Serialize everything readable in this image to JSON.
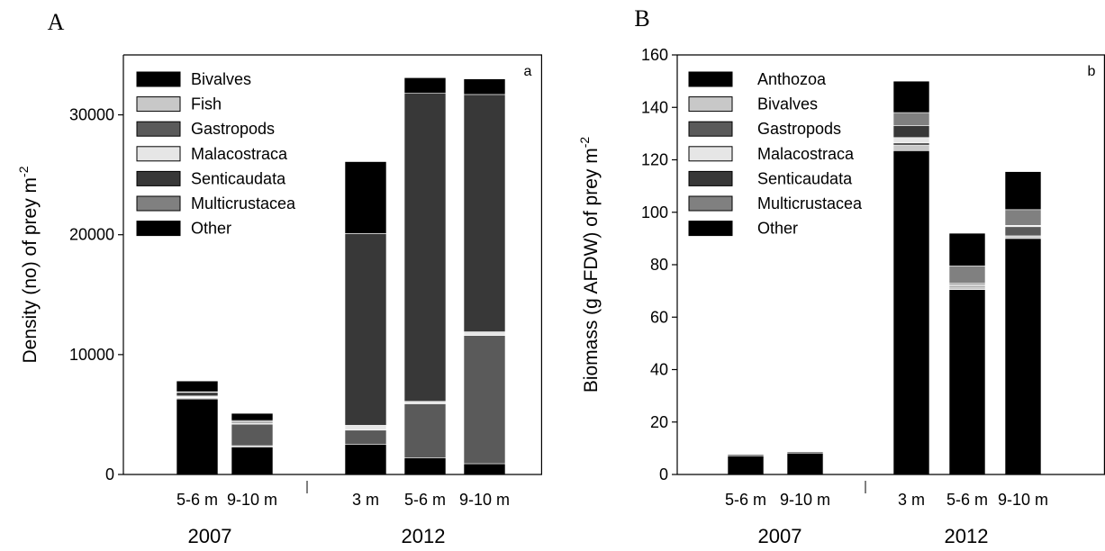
{
  "chart_data": [
    {
      "type": "bar",
      "stacked": true,
      "panel_label": "A",
      "corner_label": "a",
      "ylabel": "Density (no) of prey m",
      "ylabel_sup": "-2",
      "ylim": [
        0,
        35000
      ],
      "yticks": [
        0,
        10000,
        20000,
        30000
      ],
      "grid": false,
      "legend_position": "top-left",
      "categories": [
        "5-6 m",
        "9-10 m",
        "3 m",
        "5-6 m",
        "9-10 m"
      ],
      "category_groups": [
        1,
        1,
        2,
        2,
        2
      ],
      "groups": [
        "2007",
        "2012"
      ],
      "series": [
        {
          "name": "Bivalves",
          "color": "#000000",
          "values": [
            6300,
            2300,
            2500,
            1400,
            900
          ]
        },
        {
          "name": "Fish",
          "color": "#c8c8c8",
          "values": [
            100,
            100,
            0,
            0,
            0
          ]
        },
        {
          "name": "Gastropods",
          "color": "#5a5a5a",
          "values": [
            50,
            1800,
            1200,
            4500,
            10700
          ]
        },
        {
          "name": "Malacostraca",
          "color": "#e6e6e6",
          "values": [
            100,
            100,
            400,
            200,
            300
          ]
        },
        {
          "name": "Senticaudata",
          "color": "#383838",
          "values": [
            300,
            100,
            16000,
            25700,
            19800
          ]
        },
        {
          "name": "Multicrustacea",
          "color": "#808080",
          "values": [
            50,
            100,
            0,
            0,
            0
          ]
        },
        {
          "name": "Other",
          "color": "#000000",
          "values": [
            900,
            600,
            6000,
            1300,
            1300
          ]
        }
      ]
    },
    {
      "type": "bar",
      "stacked": true,
      "panel_label": "B",
      "corner_label": "b",
      "ylabel": "Biomass (g AFDW) of prey m",
      "ylabel_sup": "-2",
      "ylim": [
        0,
        160
      ],
      "yticks": [
        0,
        20,
        40,
        60,
        80,
        100,
        120,
        140,
        160
      ],
      "grid": false,
      "legend_position": "top-left",
      "categories": [
        "5-6 m",
        "9-10 m",
        "3 m",
        "5-6 m",
        "9-10 m"
      ],
      "category_groups": [
        1,
        1,
        2,
        2,
        2
      ],
      "groups": [
        "2007",
        "2012"
      ],
      "series": [
        {
          "name": "Anthozoa",
          "color": "#000000",
          "values": [
            7,
            8,
            123.5,
            70.5,
            90
          ]
        },
        {
          "name": "Bivalves",
          "color": "#c8c8c8",
          "values": [
            0,
            0,
            2,
            1,
            1
          ]
        },
        {
          "name": "Gastropods",
          "color": "#5a5a5a",
          "values": [
            0,
            0,
            1,
            0.5,
            3.5
          ]
        },
        {
          "name": "Malacostraca",
          "color": "#e6e6e6",
          "values": [
            0,
            0,
            2,
            0.5,
            0.5
          ]
        },
        {
          "name": "Senticaudata",
          "color": "#383838",
          "values": [
            0,
            0,
            4.5,
            0.5,
            0
          ]
        },
        {
          "name": "Multicrustacea",
          "color": "#808080",
          "values": [
            0,
            0,
            5,
            6.5,
            6
          ]
        },
        {
          "name": "Other",
          "color": "#000000",
          "values": [
            0.5,
            0.5,
            12,
            12.5,
            14.5
          ]
        }
      ]
    }
  ]
}
